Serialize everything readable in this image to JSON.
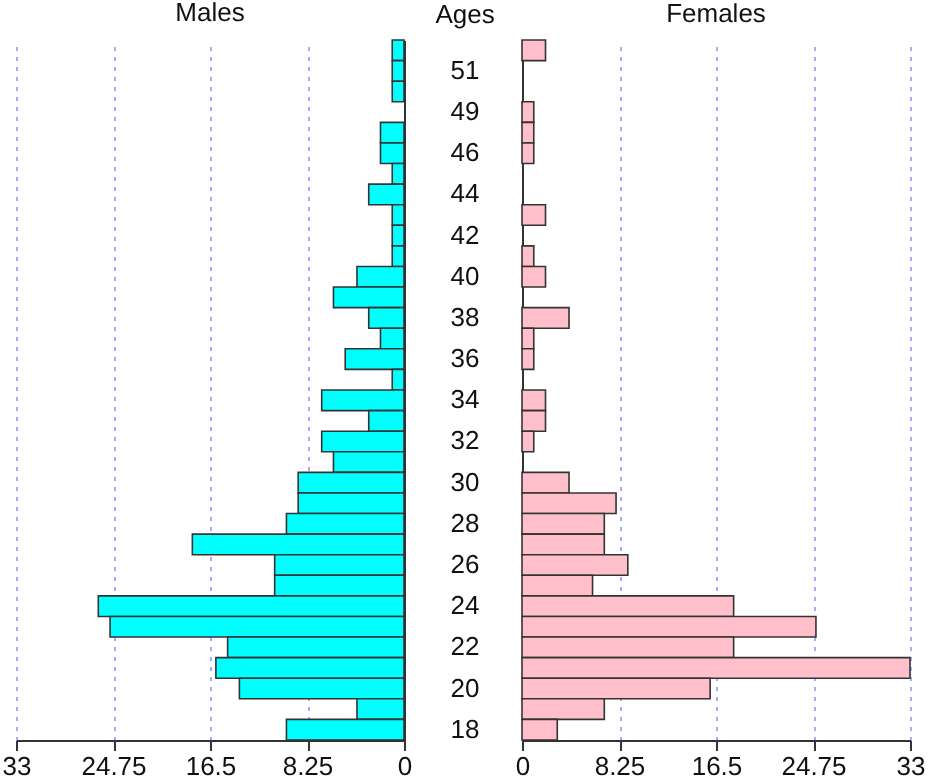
{
  "chart_data": [
    {
      "type": "bar",
      "orientation": "horizontal",
      "title": "Males",
      "categories": [
        null,
        "51",
        null,
        "49",
        null,
        "46",
        null,
        "44",
        null,
        "42",
        null,
        "40",
        null,
        "38",
        null,
        "36",
        null,
        "34",
        null,
        "32",
        null,
        "30",
        null,
        "28",
        null,
        "26",
        null,
        "24",
        null,
        "22",
        null,
        "20",
        null,
        "18"
      ],
      "values": [
        1,
        1,
        1,
        0,
        2,
        2,
        1,
        3,
        1,
        1,
        1,
        4,
        6,
        3,
        2,
        5,
        1,
        7,
        3,
        7,
        6,
        9,
        9,
        10,
        18,
        11,
        11,
        26,
        25,
        15,
        16,
        14,
        4,
        10
      ],
      "color": "#00ffff",
      "xlim": [
        33,
        0
      ],
      "xticks": [
        33,
        24.75,
        16.5,
        8.25,
        0
      ],
      "grid": "x",
      "tick_labels": "x"
    },
    {
      "type": "bar",
      "orientation": "horizontal",
      "title": "Females",
      "ylabel": "Ages",
      "categories": [
        null,
        "51",
        null,
        "49",
        null,
        "46",
        null,
        "44",
        null,
        "42",
        null,
        "40",
        null,
        "38",
        null,
        "36",
        null,
        "34",
        null,
        "32",
        null,
        "30",
        null,
        "28",
        null,
        "26",
        null,
        "24",
        null,
        "22",
        null,
        "20",
        null,
        "18"
      ],
      "values": [
        2,
        0,
        0,
        1,
        1,
        1,
        0,
        0,
        2,
        0,
        1,
        2,
        0,
        4,
        1,
        1,
        0,
        2,
        2,
        1,
        0,
        4,
        8,
        7,
        7,
        9,
        6,
        18,
        25,
        18,
        33,
        16,
        7,
        3
      ],
      "color": "#ffc0cb",
      "xlim": [
        0,
        33
      ],
      "xticks": [
        0,
        8.25,
        16.5,
        24.75,
        33
      ],
      "grid": "x"
    }
  ]
}
